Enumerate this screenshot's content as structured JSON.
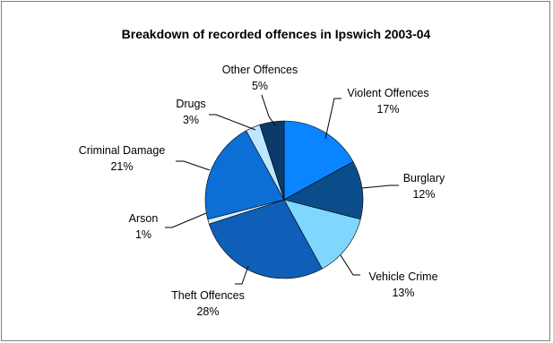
{
  "chart_data": {
    "type": "pie",
    "title": "Breakdown of recorded offences in Ipswich 2003-04",
    "series": [
      {
        "name": "Violent Offences",
        "value": 17,
        "label": "17%",
        "color": "#0A84FF"
      },
      {
        "name": "Burglary",
        "value": 12,
        "label": "12%",
        "color": "#0A4D8A"
      },
      {
        "name": "Vehicle Crime",
        "value": 13,
        "label": "13%",
        "color": "#7FD7FF"
      },
      {
        "name": "Theft Offences",
        "value": 28,
        "label": "28%",
        "color": "#0F5EB8"
      },
      {
        "name": "Arson",
        "value": 1,
        "label": "1%",
        "color": "#CFEFFF"
      },
      {
        "name": "Criminal Damage",
        "value": 21,
        "label": "21%",
        "color": "#0C6FD6"
      },
      {
        "name": "Drugs",
        "value": 3,
        "label": "3%",
        "color": "#BFE6FF"
      },
      {
        "name": "Other Offences",
        "value": 5,
        "label": "5%",
        "color": "#0A3A6A"
      }
    ]
  }
}
